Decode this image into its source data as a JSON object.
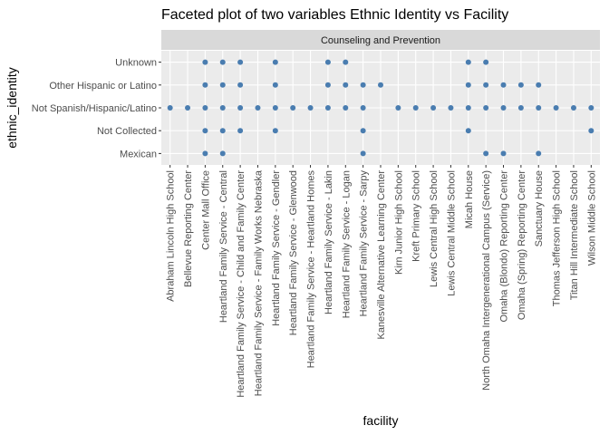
{
  "chart_data": {
    "type": "scatter",
    "title": "Faceted plot of two variables Ethnic Identity vs Facility",
    "facet_label": "Counseling and Prevention",
    "xlabel": "facility",
    "ylabel": "ethnic_identity",
    "grid": true,
    "legend": "none",
    "colors": {
      "panel": "#ebebeb",
      "strip": "#d9d9d9",
      "grid": "#ffffff",
      "point": "#4a7db0"
    },
    "x_categories": [
      "Abraham Lincoln High School",
      "Bellevue Reporting Center",
      "Center Mall Office",
      "Heartland Family Service - Central",
      "Heartland Family Service - Child and Family Center",
      "Heartland Family Service - Family Works Nebraska",
      "Heartland Family Service - Gendler",
      "Heartland Family Service - Glenwood",
      "Heartland Family Service - Heartland Homes",
      "Heartland Family Service - Lakin",
      "Heartland Family Service - Logan",
      "Heartland Family Service - Sarpy",
      "Kanesville Alternative Learning Center",
      "Kirn Junior High  School",
      "Kreft Primary  School",
      "Lewis Central High School",
      "Lewis Central Middle School",
      "Micah House",
      "North Omaha Intergenerational Campus (Service)",
      "Omaha (Blondo) Reporting Center",
      "Omaha (Spring) Reporting Center",
      "Sanctuary House",
      "Thomas Jefferson High School",
      "Titan Hill Intermediate School",
      "Wilson Middle School"
    ],
    "y_categories": [
      "Mexican",
      "Not Collected",
      "Not Spanish/Hispanic/Latino",
      "Other Hispanic or Latino",
      "Unknown"
    ],
    "points": [
      [
        "Abraham Lincoln High School",
        "Not Spanish/Hispanic/Latino"
      ],
      [
        "Bellevue Reporting Center",
        "Not Spanish/Hispanic/Latino"
      ],
      [
        "Center Mall Office",
        "Unknown"
      ],
      [
        "Center Mall Office",
        "Other Hispanic or Latino"
      ],
      [
        "Center Mall Office",
        "Not Spanish/Hispanic/Latino"
      ],
      [
        "Center Mall Office",
        "Not Collected"
      ],
      [
        "Center Mall Office",
        "Mexican"
      ],
      [
        "Heartland Family Service - Central",
        "Unknown"
      ],
      [
        "Heartland Family Service - Central",
        "Other Hispanic or Latino"
      ],
      [
        "Heartland Family Service - Central",
        "Not Spanish/Hispanic/Latino"
      ],
      [
        "Heartland Family Service - Central",
        "Not Collected"
      ],
      [
        "Heartland Family Service - Central",
        "Mexican"
      ],
      [
        "Heartland Family Service - Child and Family Center",
        "Unknown"
      ],
      [
        "Heartland Family Service - Child and Family Center",
        "Other Hispanic or Latino"
      ],
      [
        "Heartland Family Service - Child and Family Center",
        "Not Spanish/Hispanic/Latino"
      ],
      [
        "Heartland Family Service - Child and Family Center",
        "Not Collected"
      ],
      [
        "Heartland Family Service - Family Works Nebraska",
        "Not Spanish/Hispanic/Latino"
      ],
      [
        "Heartland Family Service - Gendler",
        "Unknown"
      ],
      [
        "Heartland Family Service - Gendler",
        "Other Hispanic or Latino"
      ],
      [
        "Heartland Family Service - Gendler",
        "Not Spanish/Hispanic/Latino"
      ],
      [
        "Heartland Family Service - Gendler",
        "Not Collected"
      ],
      [
        "Heartland Family Service - Glenwood",
        "Not Spanish/Hispanic/Latino"
      ],
      [
        "Heartland Family Service - Heartland Homes",
        "Not Spanish/Hispanic/Latino"
      ],
      [
        "Heartland Family Service - Lakin",
        "Unknown"
      ],
      [
        "Heartland Family Service - Lakin",
        "Other Hispanic or Latino"
      ],
      [
        "Heartland Family Service - Lakin",
        "Not Spanish/Hispanic/Latino"
      ],
      [
        "Heartland Family Service - Logan",
        "Unknown"
      ],
      [
        "Heartland Family Service - Logan",
        "Other Hispanic or Latino"
      ],
      [
        "Heartland Family Service - Logan",
        "Not Spanish/Hispanic/Latino"
      ],
      [
        "Heartland Family Service - Sarpy",
        "Other Hispanic or Latino"
      ],
      [
        "Heartland Family Service - Sarpy",
        "Not Spanish/Hispanic/Latino"
      ],
      [
        "Heartland Family Service - Sarpy",
        "Not Collected"
      ],
      [
        "Heartland Family Service - Sarpy",
        "Mexican"
      ],
      [
        "Kanesville Alternative Learning Center",
        "Other Hispanic or Latino"
      ],
      [
        "Kirn Junior High  School",
        "Not Spanish/Hispanic/Latino"
      ],
      [
        "Kreft Primary  School",
        "Not Spanish/Hispanic/Latino"
      ],
      [
        "Lewis Central High School",
        "Not Spanish/Hispanic/Latino"
      ],
      [
        "Lewis Central Middle School",
        "Not Spanish/Hispanic/Latino"
      ],
      [
        "Micah House",
        "Unknown"
      ],
      [
        "Micah House",
        "Other Hispanic or Latino"
      ],
      [
        "Micah House",
        "Not Spanish/Hispanic/Latino"
      ],
      [
        "Micah House",
        "Not Collected"
      ],
      [
        "North Omaha Intergenerational Campus (Service)",
        "Unknown"
      ],
      [
        "North Omaha Intergenerational Campus (Service)",
        "Other Hispanic or Latino"
      ],
      [
        "North Omaha Intergenerational Campus (Service)",
        "Not Spanish/Hispanic/Latino"
      ],
      [
        "North Omaha Intergenerational Campus (Service)",
        "Mexican"
      ],
      [
        "Omaha (Blondo) Reporting Center",
        "Other Hispanic or Latino"
      ],
      [
        "Omaha (Blondo) Reporting Center",
        "Not Spanish/Hispanic/Latino"
      ],
      [
        "Omaha (Blondo) Reporting Center",
        "Mexican"
      ],
      [
        "Omaha (Spring) Reporting Center",
        "Other Hispanic or Latino"
      ],
      [
        "Omaha (Spring) Reporting Center",
        "Not Spanish/Hispanic/Latino"
      ],
      [
        "Sanctuary House",
        "Other Hispanic or Latino"
      ],
      [
        "Sanctuary House",
        "Not Spanish/Hispanic/Latino"
      ],
      [
        "Sanctuary House",
        "Mexican"
      ],
      [
        "Thomas Jefferson High School",
        "Not Spanish/Hispanic/Latino"
      ],
      [
        "Titan Hill Intermediate School",
        "Not Spanish/Hispanic/Latino"
      ],
      [
        "Wilson Middle School",
        "Not Spanish/Hispanic/Latino"
      ],
      [
        "Wilson Middle School",
        "Not Collected"
      ]
    ]
  }
}
